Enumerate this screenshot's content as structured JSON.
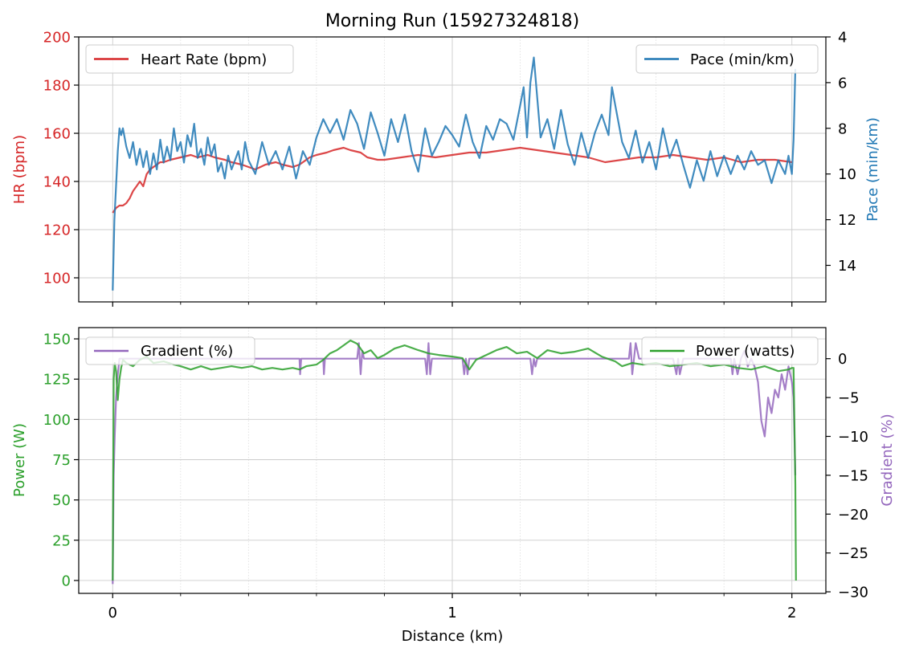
{
  "figure": {
    "title": "Morning Run (15927324818)",
    "xlabel": "Distance (km)"
  },
  "colors": {
    "hr": "#d62728",
    "pace": "#1f77b4",
    "power": "#2ca02c",
    "gradient": "#9467bd",
    "grid_major": "#cccccc",
    "grid_minor": "#dddddd"
  },
  "chart_data": [
    {
      "type": "line",
      "name": "top-panel",
      "xlim": [
        -0.1,
        2.1
      ],
      "x_ticks": [
        0,
        1,
        2
      ],
      "x_minor_step": 0.2,
      "grid": true,
      "left_axis": {
        "label": "HR (bpm)",
        "ylim": [
          90,
          200
        ],
        "ticks": [
          100,
          120,
          140,
          160,
          180,
          200
        ]
      },
      "right_axis": {
        "label": "Pace (min/km)",
        "ylim": [
          15.6,
          4
        ],
        "inverted": true,
        "ticks": [
          4,
          6,
          8,
          10,
          12,
          14
        ]
      },
      "legends": [
        {
          "label": "Heart Rate (bpm)",
          "placement": "top-left"
        },
        {
          "label": "Pace (min/km)",
          "placement": "top-right"
        }
      ],
      "series": [
        {
          "name": "Heart Rate (bpm)",
          "axis": "left",
          "x": [
            0.0,
            0.01,
            0.02,
            0.03,
            0.04,
            0.05,
            0.06,
            0.07,
            0.08,
            0.09,
            0.1,
            0.11,
            0.12,
            0.13,
            0.14,
            0.15,
            0.17,
            0.2,
            0.23,
            0.25,
            0.28,
            0.3,
            0.33,
            0.35,
            0.38,
            0.4,
            0.42,
            0.45,
            0.48,
            0.5,
            0.53,
            0.55,
            0.58,
            0.6,
            0.63,
            0.65,
            0.68,
            0.7,
            0.73,
            0.75,
            0.78,
            0.8,
            0.85,
            0.9,
            0.95,
            1.0,
            1.05,
            1.1,
            1.15,
            1.2,
            1.25,
            1.3,
            1.35,
            1.4,
            1.45,
            1.5,
            1.55,
            1.6,
            1.65,
            1.7,
            1.75,
            1.8,
            1.85,
            1.9,
            1.95,
            2.0
          ],
          "y": [
            127,
            129,
            130,
            130,
            131,
            133,
            136,
            138,
            140,
            138,
            143,
            145,
            146,
            147,
            148,
            148,
            149,
            150,
            151,
            150,
            151,
            150,
            149,
            148,
            147,
            146,
            145,
            147,
            148,
            147,
            146,
            147,
            150,
            151,
            152,
            153,
            154,
            153,
            152,
            150,
            149,
            149,
            150,
            151,
            150,
            151,
            152,
            152,
            153,
            154,
            153,
            152,
            151,
            150,
            148,
            149,
            150,
            150,
            151,
            150,
            149,
            150,
            148,
            149,
            149,
            148
          ]
        },
        {
          "name": "Pace (min/km)",
          "axis": "right",
          "x": [
            0.0,
            0.005,
            0.01,
            0.015,
            0.02,
            0.025,
            0.03,
            0.04,
            0.05,
            0.06,
            0.07,
            0.08,
            0.09,
            0.1,
            0.11,
            0.12,
            0.13,
            0.14,
            0.15,
            0.16,
            0.17,
            0.18,
            0.19,
            0.2,
            0.21,
            0.22,
            0.23,
            0.24,
            0.25,
            0.26,
            0.27,
            0.28,
            0.29,
            0.3,
            0.31,
            0.32,
            0.33,
            0.34,
            0.35,
            0.36,
            0.37,
            0.38,
            0.39,
            0.4,
            0.42,
            0.44,
            0.46,
            0.48,
            0.5,
            0.52,
            0.54,
            0.56,
            0.58,
            0.6,
            0.62,
            0.64,
            0.66,
            0.68,
            0.7,
            0.72,
            0.74,
            0.76,
            0.78,
            0.8,
            0.82,
            0.84,
            0.86,
            0.88,
            0.9,
            0.92,
            0.94,
            0.96,
            0.98,
            1.0,
            1.02,
            1.04,
            1.06,
            1.08,
            1.1,
            1.12,
            1.14,
            1.16,
            1.18,
            1.2,
            1.21,
            1.22,
            1.23,
            1.24,
            1.26,
            1.28,
            1.3,
            1.32,
            1.34,
            1.36,
            1.38,
            1.4,
            1.42,
            1.44,
            1.46,
            1.47,
            1.48,
            1.5,
            1.52,
            1.54,
            1.56,
            1.58,
            1.6,
            1.62,
            1.64,
            1.66,
            1.68,
            1.7,
            1.72,
            1.74,
            1.76,
            1.78,
            1.8,
            1.82,
            1.84,
            1.86,
            1.88,
            1.9,
            1.92,
            1.94,
            1.96,
            1.98,
            1.99,
            2.0,
            2.005,
            2.01
          ],
          "y": [
            15.1,
            12.0,
            10.5,
            9.0,
            8.0,
            8.3,
            8.0,
            8.8,
            9.3,
            8.6,
            9.6,
            8.9,
            9.7,
            9.0,
            10.0,
            9.1,
            9.8,
            8.5,
            9.5,
            8.8,
            9.4,
            8.0,
            9.0,
            8.6,
            9.5,
            8.3,
            8.8,
            7.8,
            9.3,
            8.9,
            9.6,
            8.4,
            9.2,
            8.7,
            9.9,
            9.5,
            10.2,
            9.2,
            9.8,
            9.4,
            9.0,
            9.8,
            8.6,
            9.4,
            10.0,
            8.6,
            9.6,
            9.0,
            9.8,
            8.8,
            10.2,
            9.0,
            9.6,
            8.4,
            7.6,
            8.2,
            7.6,
            8.5,
            7.2,
            7.8,
            8.9,
            7.3,
            8.2,
            9.2,
            7.6,
            8.6,
            7.4,
            9.0,
            9.9,
            8.0,
            9.2,
            8.6,
            7.9,
            8.3,
            8.8,
            7.4,
            8.6,
            9.3,
            7.9,
            8.5,
            7.6,
            7.8,
            8.5,
            7.0,
            6.2,
            8.4,
            6.0,
            4.9,
            8.4,
            7.6,
            8.9,
            7.2,
            8.7,
            9.6,
            8.2,
            9.3,
            8.2,
            7.4,
            8.3,
            6.2,
            7.0,
            8.6,
            9.3,
            8.1,
            9.5,
            8.6,
            9.8,
            8.0,
            9.3,
            8.5,
            9.6,
            10.6,
            9.4,
            10.3,
            9.0,
            10.1,
            9.2,
            10.0,
            9.2,
            9.8,
            9.0,
            9.6,
            9.4,
            10.4,
            9.4,
            10.0,
            9.2,
            10.0,
            8.5,
            5.4
          ]
        }
      ]
    },
    {
      "type": "line",
      "name": "bottom-panel",
      "xlim": [
        -0.1,
        2.1
      ],
      "x_ticks": [
        0,
        1,
        2
      ],
      "x_minor_step": 0.2,
      "grid": true,
      "left_axis": {
        "label": "Power (W)",
        "ylim": [
          -8,
          157
        ],
        "ticks": [
          0,
          25,
          50,
          75,
          100,
          125,
          150
        ]
      },
      "right_axis": {
        "label": "Gradient (%)",
        "ylim": [
          -30.2,
          4
        ],
        "ticks": [
          -30,
          -25,
          -20,
          -15,
          -10,
          -5,
          0
        ]
      },
      "legends": [
        {
          "label": "Gradient (%)",
          "placement": "top-left"
        },
        {
          "label": "Power (watts)",
          "placement": "top-right"
        }
      ],
      "series": [
        {
          "name": "Power (watts)",
          "axis": "left",
          "x": [
            0.0,
            0.003,
            0.006,
            0.01,
            0.015,
            0.02,
            0.025,
            0.03,
            0.04,
            0.06,
            0.08,
            0.1,
            0.12,
            0.15,
            0.18,
            0.2,
            0.23,
            0.26,
            0.29,
            0.32,
            0.35,
            0.38,
            0.41,
            0.44,
            0.47,
            0.5,
            0.53,
            0.55,
            0.57,
            0.6,
            0.62,
            0.64,
            0.66,
            0.68,
            0.7,
            0.72,
            0.74,
            0.76,
            0.78,
            0.8,
            0.83,
            0.86,
            0.9,
            0.93,
            0.96,
            1.0,
            1.03,
            1.05,
            1.07,
            1.1,
            1.13,
            1.16,
            1.19,
            1.22,
            1.25,
            1.28,
            1.32,
            1.36,
            1.4,
            1.44,
            1.48,
            1.5,
            1.53,
            1.56,
            1.6,
            1.64,
            1.68,
            1.72,
            1.76,
            1.8,
            1.84,
            1.88,
            1.92,
            1.96,
            1.99,
            2.0,
            2.005,
            2.01,
            2.012
          ],
          "y": [
            0,
            125,
            135,
            130,
            112,
            125,
            132,
            137,
            135,
            133,
            137,
            139,
            135,
            136,
            134,
            133,
            131,
            133,
            131,
            132,
            133,
            132,
            133,
            131,
            132,
            131,
            132,
            131,
            133,
            134,
            137,
            141,
            143,
            146,
            149,
            147,
            141,
            143,
            138,
            140,
            144,
            146,
            143,
            141,
            140,
            139,
            138,
            131,
            137,
            140,
            143,
            145,
            141,
            142,
            138,
            143,
            141,
            142,
            144,
            139,
            136,
            133,
            135,
            134,
            135,
            133,
            134,
            135,
            133,
            134,
            132,
            131,
            133,
            130,
            131,
            132,
            132,
            60,
            0
          ]
        },
        {
          "name": "Gradient (%)",
          "axis": "right",
          "x": [
            0.0,
            0.003,
            0.006,
            0.01,
            0.015,
            0.02,
            0.025,
            0.03,
            0.05,
            0.1,
            0.2,
            0.3,
            0.4,
            0.5,
            0.55,
            0.552,
            0.555,
            0.56,
            0.6,
            0.62,
            0.622,
            0.625,
            0.63,
            0.7,
            0.72,
            0.725,
            0.73,
            0.735,
            0.74,
            0.75,
            0.8,
            0.9,
            0.92,
            0.925,
            0.93,
            0.935,
            0.94,
            0.95,
            1.0,
            1.03,
            1.035,
            1.04,
            1.045,
            1.05,
            1.1,
            1.2,
            1.23,
            1.235,
            1.24,
            1.245,
            1.25,
            1.3,
            1.4,
            1.45,
            1.5,
            1.52,
            1.525,
            1.53,
            1.54,
            1.55,
            1.6,
            1.65,
            1.66,
            1.665,
            1.67,
            1.68,
            1.7,
            1.75,
            1.8,
            1.82,
            1.825,
            1.83,
            1.84,
            1.85,
            1.86,
            1.87,
            1.88,
            1.89,
            1.9,
            1.91,
            1.92,
            1.93,
            1.94,
            1.95,
            1.96,
            1.97,
            1.98,
            1.99,
            2.0,
            2.005,
            2.01
          ],
          "y": [
            -29,
            -15,
            -10,
            -5,
            -2,
            0,
            0,
            0,
            0,
            0,
            0,
            0,
            0,
            0,
            0,
            -2,
            0,
            0,
            0,
            0,
            -2,
            0,
            0,
            0,
            0,
            2,
            -2,
            1,
            0,
            0,
            0,
            0,
            0,
            -2,
            2,
            -2,
            0,
            0,
            0,
            0,
            -2,
            0,
            -2,
            0,
            0,
            0,
            0,
            -2,
            0,
            -1,
            0,
            0,
            0,
            0,
            0,
            0,
            2,
            -2,
            2,
            0,
            0,
            0,
            -2,
            0,
            -2,
            0,
            0,
            0,
            0,
            0,
            -2,
            0,
            -2,
            0,
            1,
            -1,
            0,
            -1,
            -3,
            -8,
            -10,
            -5,
            -7,
            -4,
            -5,
            -2,
            -4,
            -1,
            -3,
            -5,
            -15
          ]
        }
      ]
    }
  ]
}
